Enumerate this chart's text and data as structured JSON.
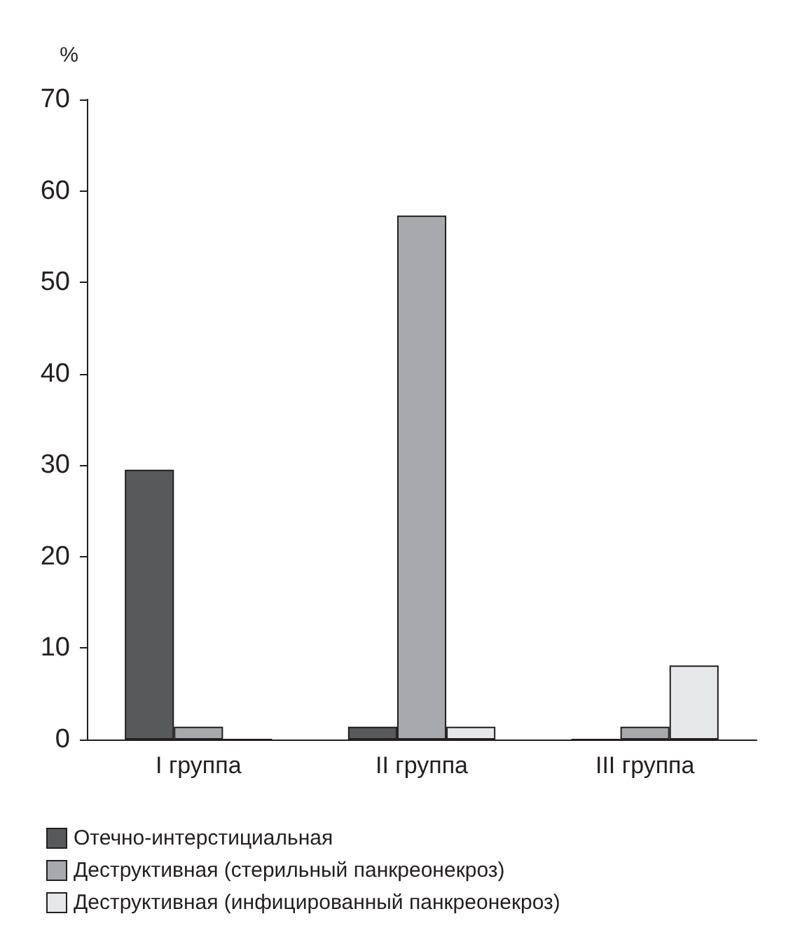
{
  "chart_data": {
    "type": "bar",
    "ylabel": "%",
    "categories": [
      "I группа",
      "II группа",
      "III группа"
    ],
    "series": [
      {
        "name": "Отечно-интерстициальная",
        "color": "#58595b",
        "values": [
          29.5,
          1.4,
          0
        ]
      },
      {
        "name": "Деструктивная (стерильный панкреонекроз)",
        "color": "#a7a9ac",
        "values": [
          1.4,
          57.3,
          1.4
        ]
      },
      {
        "name": "Деструктивная (инфицированный панкреонекроз)",
        "color": "#e6e7e8",
        "values": [
          0,
          1.4,
          8.1
        ]
      }
    ],
    "ylim": [
      0,
      70
    ],
    "yticks": [
      0,
      10,
      20,
      30,
      40,
      50,
      60,
      70
    ],
    "grid": false,
    "legend": "bottom left"
  }
}
